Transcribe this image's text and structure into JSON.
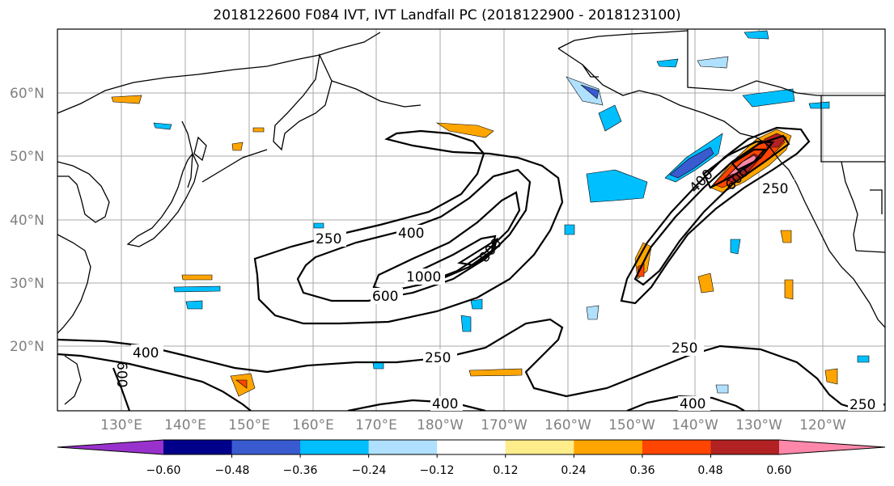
{
  "title": "2018122600 F084 IVT, IVT Landfall PC (2018122900 - 2018123100)",
  "lat_labels": [
    "60°N",
    "50°N",
    "40°N",
    "30°N",
    "20°N"
  ],
  "lon_labels": [
    "130°E",
    "140°E",
    "150°E",
    "160°E",
    "170°E",
    "180°W",
    "170°W",
    "160°W",
    "150°W",
    "140°W",
    "130°W",
    "120°W"
  ],
  "contour_labels": [
    "250",
    "400",
    "600",
    "800",
    "1000",
    "600",
    "400",
    "250",
    "600",
    "400",
    "250",
    "250",
    "400",
    "250"
  ],
  "colorbar": {
    "ticks": [
      "−0.60",
      "−0.48",
      "−0.36",
      "−0.24",
      "−0.12",
      "0.12",
      "0.24",
      "0.36",
      "0.48",
      "0.60"
    ],
    "colors": [
      "#9932cc",
      "#00008b",
      "#3a5bd0",
      "#00bfff",
      "#b0e0ff",
      "#ffffff",
      "#ffec8b",
      "#ffa500",
      "#ff4500",
      "#b22222",
      "#ff88aa"
    ]
  }
}
